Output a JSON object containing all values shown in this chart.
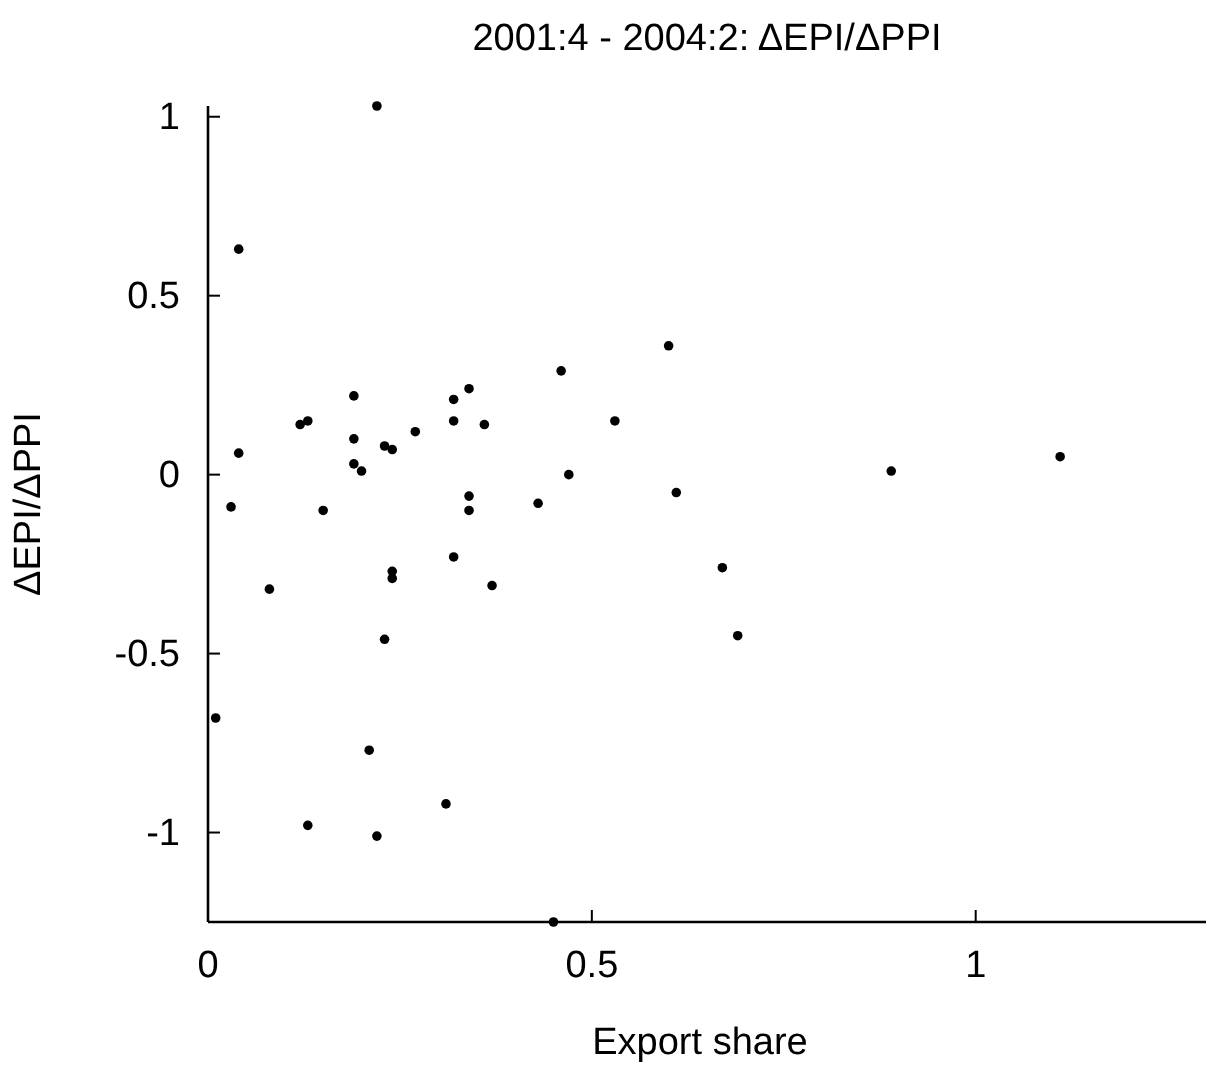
{
  "chart_data": {
    "type": "scatter",
    "title": "2001:4 - 2004:2: ΔEPI/ΔPPI",
    "xlabel": "Export share",
    "ylabel": "ΔEPI/ΔPPI",
    "xlim": [
      0,
      1.3
    ],
    "ylim": [
      -1.25,
      1.03
    ],
    "xticks": [
      0,
      0.5,
      1
    ],
    "yticks": [
      -1,
      -0.5,
      0,
      0.5,
      1
    ],
    "marker": "circle",
    "series": [
      {
        "color": "#000000",
        "x": [
          0.22,
          0.04,
          0.04,
          0.03,
          0.12,
          0.13,
          0.15,
          0.19,
          0.19,
          0.19,
          0.2,
          0.23,
          0.24,
          0.27,
          0.32,
          0.32,
          0.34,
          0.36,
          0.34,
          0.34,
          0.43,
          0.46,
          0.47,
          0.08,
          0.24,
          0.24,
          0.32,
          0.37,
          0.23,
          0.01,
          0.21,
          0.13,
          0.22,
          0.31,
          0.45,
          0.6,
          0.53,
          0.61,
          0.67,
          0.69,
          0.89,
          1.11
        ],
        "values": [
          1.03,
          0.63,
          0.06,
          -0.09,
          0.14,
          0.15,
          -0.1,
          0.22,
          0.1,
          0.03,
          0.01,
          0.08,
          0.07,
          0.12,
          0.21,
          0.15,
          0.24,
          0.14,
          -0.06,
          -0.1,
          -0.08,
          0.29,
          0,
          -0.32,
          -0.29,
          -0.27,
          -0.23,
          -0.31,
          -0.46,
          -0.68,
          -0.77,
          -0.98,
          -1.01,
          -0.92,
          -1.25,
          0.36,
          0.15,
          -0.05,
          -0.26,
          -0.45,
          0.01,
          0.05
        ]
      }
    ]
  }
}
